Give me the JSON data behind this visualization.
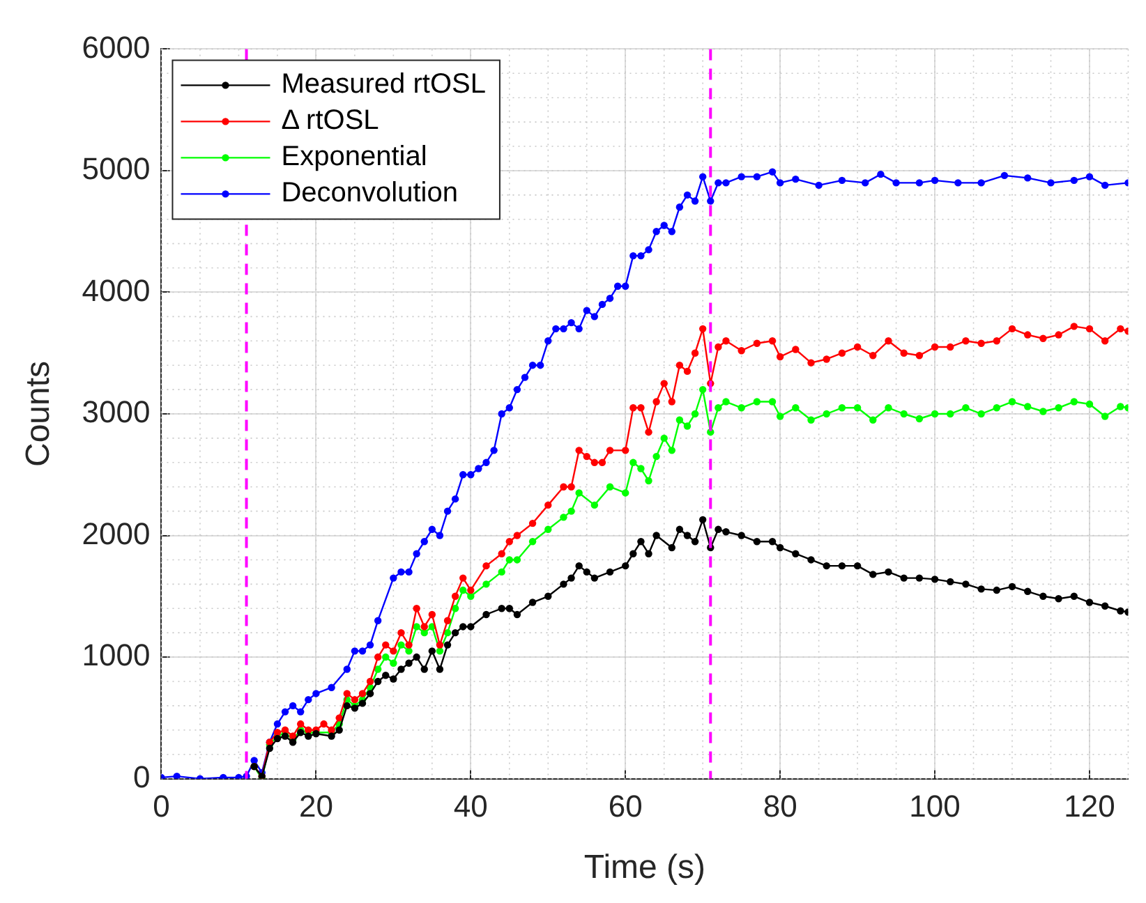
{
  "chart_data": {
    "type": "line",
    "xlabel": "Time (s)",
    "ylabel": "Counts",
    "xlim": [
      0,
      125
    ],
    "xticks": [
      0,
      20,
      40,
      60,
      80,
      100,
      120
    ],
    "ylim": [
      0,
      6000
    ],
    "yticks": [
      0,
      1000,
      2000,
      3000,
      4000,
      5000,
      6000
    ],
    "grid": true,
    "legend": "top left",
    "marker": "circle",
    "line_style": "solid",
    "ref_lines": [
      {
        "axis": "x",
        "value": 11,
        "color": "#ff00ff",
        "line_style": "dashed"
      },
      {
        "axis": "x",
        "value": 71,
        "color": "#ff00ff",
        "line_style": "dashed"
      }
    ],
    "series": [
      {
        "name": "Measured rtOSL",
        "color": "#000000",
        "x": [
          12,
          13,
          14,
          15,
          16,
          17,
          18,
          19,
          20,
          22,
          23,
          24,
          25,
          26,
          27,
          28,
          29,
          30,
          31,
          32,
          33,
          34,
          35,
          36,
          37,
          38,
          39,
          40,
          42,
          44,
          45,
          46,
          48,
          50,
          52,
          53,
          54,
          55,
          56,
          58,
          60,
          61,
          62,
          63,
          64,
          66,
          67,
          68,
          69,
          70,
          71,
          72,
          73,
          75,
          77,
          79,
          80,
          82,
          84,
          86,
          88,
          90,
          92,
          94,
          96,
          98,
          100,
          102,
          104,
          106,
          108,
          110,
          112,
          114,
          116,
          118,
          120,
          122,
          124,
          125
        ],
        "values": [
          100,
          20,
          250,
          330,
          350,
          300,
          380,
          350,
          370,
          350,
          400,
          600,
          580,
          620,
          700,
          800,
          850,
          820,
          900,
          950,
          1000,
          900,
          1050,
          900,
          1100,
          1200,
          1250,
          1250,
          1350,
          1400,
          1400,
          1350,
          1450,
          1500,
          1600,
          1650,
          1750,
          1700,
          1650,
          1700,
          1750,
          1850,
          1950,
          1850,
          2000,
          1900,
          2050,
          2000,
          1950,
          2130,
          1900,
          2050,
          2030,
          2000,
          1950,
          1950,
          1900,
          1850,
          1800,
          1750,
          1750,
          1750,
          1680,
          1700,
          1650,
          1650,
          1640,
          1620,
          1600,
          1560,
          1550,
          1580,
          1540,
          1500,
          1480,
          1500,
          1450,
          1420,
          1380,
          1370
        ]
      },
      {
        "name": "Δ rtOSL",
        "color": "#ff0000",
        "x": [
          12,
          13,
          14,
          15,
          16,
          17,
          18,
          19,
          20,
          21,
          22,
          23,
          24,
          25,
          26,
          27,
          28,
          29,
          30,
          31,
          32,
          33,
          34,
          35,
          36,
          37,
          38,
          39,
          40,
          42,
          44,
          45,
          46,
          48,
          50,
          52,
          53,
          54,
          55,
          56,
          57,
          58,
          60,
          61,
          62,
          63,
          64,
          65,
          66,
          67,
          68,
          69,
          70,
          71,
          72,
          73,
          75,
          77,
          79,
          80,
          82,
          84,
          86,
          88,
          90,
          92,
          94,
          96,
          98,
          100,
          102,
          104,
          106,
          108,
          110,
          112,
          114,
          116,
          118,
          120,
          122,
          124,
          125
        ],
        "values": [
          100,
          20,
          300,
          380,
          400,
          350,
          450,
          400,
          400,
          450,
          400,
          500,
          700,
          650,
          700,
          800,
          1000,
          1100,
          1050,
          1200,
          1100,
          1400,
          1250,
          1350,
          1100,
          1300,
          1500,
          1650,
          1550,
          1750,
          1850,
          1950,
          2000,
          2100,
          2250,
          2400,
          2400,
          2700,
          2650,
          2600,
          2600,
          2700,
          2700,
          3050,
          3050,
          2850,
          3100,
          3250,
          3100,
          3400,
          3350,
          3500,
          3700,
          3250,
          3550,
          3600,
          3520,
          3580,
          3600,
          3470,
          3530,
          3420,
          3450,
          3500,
          3550,
          3480,
          3600,
          3500,
          3480,
          3550,
          3550,
          3600,
          3580,
          3600,
          3700,
          3650,
          3620,
          3650,
          3720,
          3700,
          3600,
          3700,
          3680
        ]
      },
      {
        "name": "Exponential",
        "color": "#00ff00",
        "x": [
          12,
          13,
          14,
          15,
          16,
          17,
          18,
          19,
          20,
          22,
          23,
          24,
          25,
          26,
          27,
          28,
          29,
          30,
          31,
          32,
          33,
          34,
          35,
          36,
          37,
          38,
          39,
          40,
          42,
          44,
          45,
          46,
          48,
          50,
          52,
          53,
          54,
          56,
          58,
          60,
          61,
          62,
          63,
          64,
          65,
          66,
          67,
          68,
          69,
          70,
          71,
          72,
          73,
          75,
          77,
          79,
          80,
          82,
          84,
          86,
          88,
          90,
          92,
          94,
          96,
          98,
          100,
          102,
          104,
          106,
          108,
          110,
          112,
          114,
          116,
          118,
          120,
          122,
          124,
          125
        ],
        "values": [
          100,
          0,
          280,
          350,
          380,
          320,
          400,
          380,
          380,
          380,
          450,
          650,
          600,
          650,
          750,
          900,
          1000,
          950,
          1100,
          1050,
          1250,
          1200,
          1250,
          1050,
          1200,
          1400,
          1550,
          1500,
          1600,
          1700,
          1800,
          1800,
          1950,
          2050,
          2150,
          2200,
          2350,
          2250,
          2400,
          2350,
          2600,
          2550,
          2450,
          2650,
          2800,
          2700,
          2950,
          2900,
          3000,
          3200,
          2850,
          3050,
          3100,
          3050,
          3100,
          3100,
          2980,
          3050,
          2950,
          3000,
          3050,
          3050,
          2950,
          3050,
          3000,
          2960,
          3000,
          3000,
          3050,
          3000,
          3050,
          3100,
          3060,
          3020,
          3050,
          3100,
          3080,
          2980,
          3060,
          3050
        ]
      },
      {
        "name": "Deconvolution",
        "color": "#0000ff",
        "x": [
          0,
          2,
          5,
          8,
          10,
          11,
          12,
          13,
          14,
          15,
          16,
          17,
          18,
          19,
          20,
          22,
          24,
          25,
          26,
          27,
          28,
          30,
          31,
          32,
          33,
          34,
          35,
          36,
          37,
          38,
          39,
          40,
          41,
          42,
          43,
          44,
          45,
          46,
          47,
          48,
          49,
          50,
          51,
          52,
          53,
          54,
          55,
          56,
          57,
          58,
          59,
          60,
          61,
          62,
          63,
          64,
          65,
          66,
          67,
          68,
          69,
          70,
          71,
          72,
          73,
          75,
          77,
          79,
          80,
          82,
          85,
          88,
          91,
          93,
          95,
          98,
          100,
          103,
          106,
          109,
          112,
          115,
          118,
          120,
          122,
          125
        ],
        "values": [
          10,
          20,
          0,
          10,
          10,
          20,
          150,
          50,
          300,
          450,
          550,
          600,
          550,
          650,
          700,
          750,
          900,
          1050,
          1050,
          1100,
          1300,
          1650,
          1700,
          1700,
          1850,
          1950,
          2050,
          2000,
          2200,
          2300,
          2500,
          2500,
          2550,
          2600,
          2700,
          3000,
          3050,
          3200,
          3300,
          3400,
          3400,
          3600,
          3700,
          3700,
          3750,
          3700,
          3850,
          3800,
          3900,
          3950,
          4050,
          4050,
          4300,
          4300,
          4350,
          4500,
          4550,
          4500,
          4700,
          4800,
          4750,
          4950,
          4750,
          4900,
          4900,
          4950,
          4950,
          4990,
          4900,
          4930,
          4880,
          4920,
          4900,
          4970,
          4900,
          4900,
          4920,
          4900,
          4900,
          4960,
          4940,
          4900,
          4920,
          4950,
          4880,
          4900
        ]
      }
    ]
  }
}
